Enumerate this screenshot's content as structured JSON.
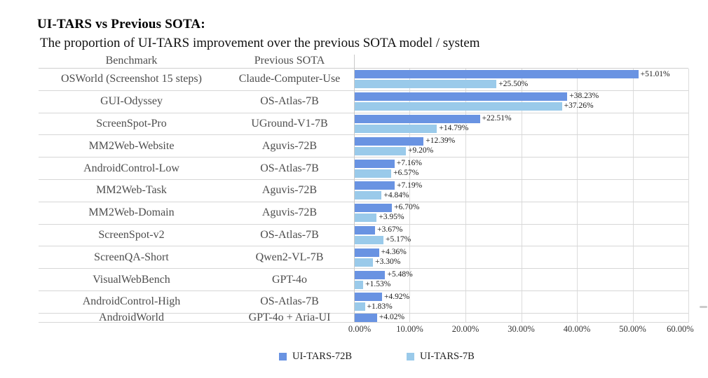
{
  "chart_data": {
    "type": "bar",
    "orientation": "horizontal",
    "title": "UI-TARS vs Previous SOTA:",
    "subtitle": "The proportion of UI-TARS improvement over the previous SOTA model / system",
    "columns": {
      "benchmark": "Benchmark",
      "previous_sota": "Previous SOTA"
    },
    "xlim": [
      0,
      60
    ],
    "x_tick_labels": [
      "0.00%",
      "10.00%",
      "20.00%",
      "30.00%",
      "40.00%",
      "50.00%",
      "60.00%"
    ],
    "grid": true,
    "legend_position": "bottom-center",
    "series": [
      {
        "name": "UI-TARS-72B",
        "color": "#6993e2"
      },
      {
        "name": "UI-TARS-7B",
        "color": "#9acaea"
      }
    ],
    "rows": [
      {
        "benchmark": "OSWorld (Screenshot 15 steps)",
        "previous_sota": "Claude-Computer-Use",
        "ui_tars_72b": 51.01,
        "ui_tars_72b_label": "+51.01%",
        "ui_tars_7b": 25.5,
        "ui_tars_7b_label": "+25.50%"
      },
      {
        "benchmark": "GUI-Odyssey",
        "previous_sota": "OS-Atlas-7B",
        "ui_tars_72b": 38.23,
        "ui_tars_72b_label": "+38.23%",
        "ui_tars_7b": 37.26,
        "ui_tars_7b_label": "+37.26%"
      },
      {
        "benchmark": "ScreenSpot-Pro",
        "previous_sota": "UGround-V1-7B",
        "ui_tars_72b": 22.51,
        "ui_tars_72b_label": "+22.51%",
        "ui_tars_7b": 14.79,
        "ui_tars_7b_label": "+14.79%"
      },
      {
        "benchmark": "MM2Web-Website",
        "previous_sota": "Aguvis-72B",
        "ui_tars_72b": 12.39,
        "ui_tars_72b_label": "+12.39%",
        "ui_tars_7b": 9.2,
        "ui_tars_7b_label": "+9.20%"
      },
      {
        "benchmark": "AndroidControl-Low",
        "previous_sota": "OS-Atlas-7B",
        "ui_tars_72b": 7.16,
        "ui_tars_72b_label": "+7.16%",
        "ui_tars_7b": 6.57,
        "ui_tars_7b_label": "+6.57%"
      },
      {
        "benchmark": "MM2Web-Task",
        "previous_sota": "Aguvis-72B",
        "ui_tars_72b": 7.19,
        "ui_tars_72b_label": "+7.19%",
        "ui_tars_7b": 4.84,
        "ui_tars_7b_label": "+4.84%"
      },
      {
        "benchmark": "MM2Web-Domain",
        "previous_sota": "Aguvis-72B",
        "ui_tars_72b": 6.7,
        "ui_tars_72b_label": "+6.70%",
        "ui_tars_7b": 3.95,
        "ui_tars_7b_label": "+3.95%"
      },
      {
        "benchmark": "ScreenSpot-v2",
        "previous_sota": "OS-Atlas-7B",
        "ui_tars_72b": 3.67,
        "ui_tars_72b_label": "+3.67%",
        "ui_tars_7b": 5.17,
        "ui_tars_7b_label": "+5.17%"
      },
      {
        "benchmark": "ScreenQA-Short",
        "previous_sota": "Qwen2-VL-7B",
        "ui_tars_72b": 4.36,
        "ui_tars_72b_label": "+4.36%",
        "ui_tars_7b": 3.3,
        "ui_tars_7b_label": "+3.30%"
      },
      {
        "benchmark": "VisualWebBench",
        "previous_sota": "GPT-4o",
        "ui_tars_72b": 5.48,
        "ui_tars_72b_label": "+5.48%",
        "ui_tars_7b": 1.53,
        "ui_tars_7b_label": "+1.53%"
      },
      {
        "benchmark": "AndroidControl-High",
        "previous_sota": "OS-Atlas-7B",
        "ui_tars_72b": 4.92,
        "ui_tars_72b_label": "+4.92%",
        "ui_tars_7b": 1.83,
        "ui_tars_7b_label": "+1.83%"
      },
      {
        "benchmark": "AndroidWorld",
        "previous_sota": "GPT-4o + Aria-UI",
        "ui_tars_72b": 4.02,
        "ui_tars_72b_label": "+4.02%",
        "ui_tars_7b": null,
        "ui_tars_7b_label": null
      }
    ]
  }
}
